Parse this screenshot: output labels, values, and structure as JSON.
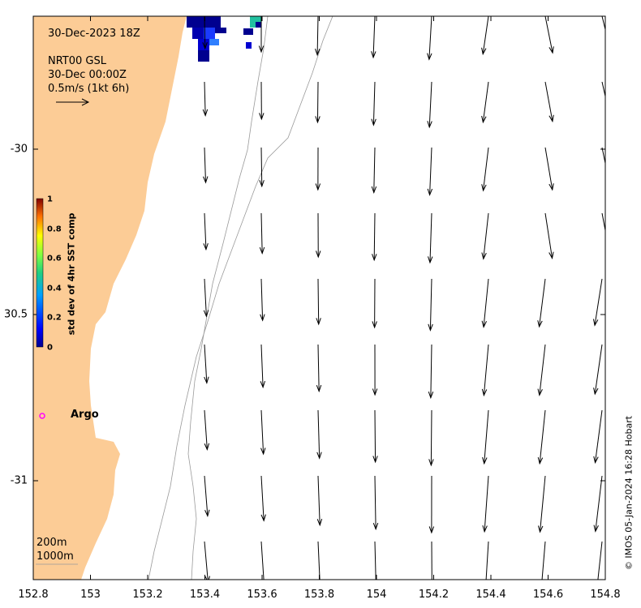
{
  "map": {
    "date_label": "30-Dec-2023 18Z",
    "product_line1": "NRT00 GSL",
    "product_line2": "30-Dec 00:00Z",
    "product_line3": "0.5m/s (1kt 6h)",
    "argo_label": "Argo",
    "legend_200m": "200m",
    "legend_1000m": "1000m",
    "credit": "© IMOS 05-Jan-2024 16:28 Hobart",
    "colorbar": {
      "label": "std dev of 4hr SST comp",
      "ticks": [
        "1",
        "0.8",
        "0.6",
        "0.4",
        "0.2",
        "0"
      ]
    },
    "x_ticks": [
      "152.8",
      "153",
      "153.2",
      "153.4",
      "153.6",
      "153.8",
      "154",
      "154.2",
      "154.4",
      "154.6",
      "154.8"
    ],
    "y_ticks": [
      "-30",
      "30.5",
      "-31"
    ],
    "colors": {
      "land": "#fccc96",
      "argo": "#ff00ff",
      "sst_low": "#00008f",
      "sst_mid": "#2f7fff",
      "sst_high": "#22c1a0"
    },
    "extent": {
      "lon_min": 152.8,
      "lon_max": 154.8,
      "lat_top": -29.6,
      "lat_bottom": -31.3
    }
  }
}
